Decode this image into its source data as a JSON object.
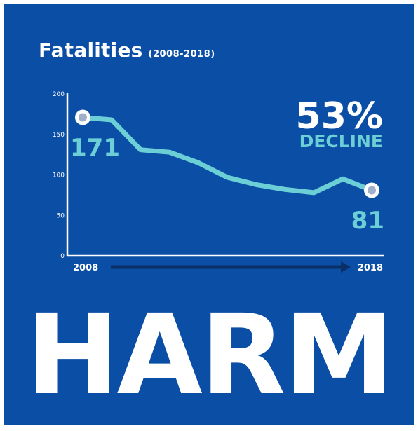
{
  "title": "Fatalities",
  "subtitle": "(2008-2018)",
  "headline": {
    "percent": "53%",
    "label": "DECLINE"
  },
  "big_word": "HARM",
  "colors": {
    "background": "#0b4ea6",
    "line": "#6dcfd6",
    "highlight": "#ffffff",
    "arrow": "#0a2f66"
  },
  "chart_data": {
    "type": "line",
    "title": "Fatalities",
    "subtitle": "(2008-2018)",
    "x": [
      2008,
      2009,
      2010,
      2011,
      2012,
      2013,
      2014,
      2015,
      2016,
      2017,
      2018
    ],
    "series": [
      {
        "values": [
          171,
          168,
          131,
          128,
          115,
          97,
          88,
          82,
          78,
          95,
          81
        ]
      }
    ],
    "x_tick_labels": [
      "2008",
      "2018"
    ],
    "y_ticks": [
      0,
      50,
      100,
      150,
      200
    ],
    "ylim": [
      0,
      200
    ],
    "annotations": [
      {
        "x": 2008,
        "text": "171"
      },
      {
        "x": 2018,
        "text": "81"
      }
    ],
    "grid": false
  }
}
